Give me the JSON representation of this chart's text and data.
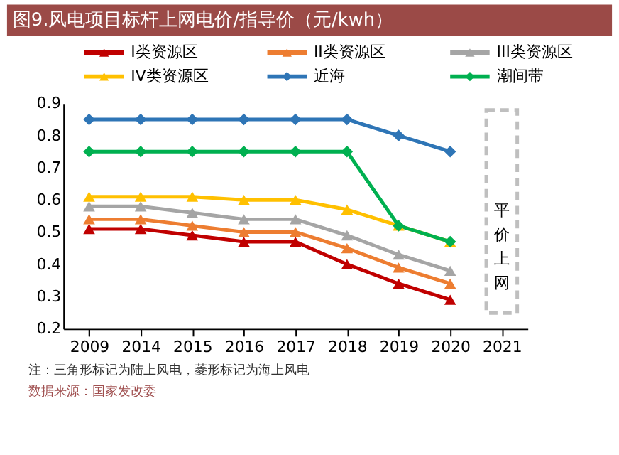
{
  "chart_data": {
    "type": "line",
    "title": "图9.风电项目标杆上网电价/指导价（元/kwh）",
    "categories": [
      "2009",
      "2014",
      "2015",
      "2016",
      "2017",
      "2018",
      "2019",
      "2020",
      "2021"
    ],
    "series": [
      {
        "name": "I类资源区",
        "color": "#c00000",
        "marker": "triangle",
        "values": [
          0.51,
          0.51,
          0.49,
          0.47,
          0.47,
          0.4,
          0.34,
          0.29,
          null
        ]
      },
      {
        "name": "II类资源区",
        "color": "#ed7d31",
        "marker": "triangle",
        "values": [
          0.54,
          0.54,
          0.52,
          0.5,
          0.5,
          0.45,
          0.39,
          0.34,
          null
        ]
      },
      {
        "name": "III类资源区",
        "color": "#a5a5a5",
        "marker": "triangle",
        "values": [
          0.58,
          0.58,
          0.56,
          0.54,
          0.54,
          0.49,
          0.43,
          0.38,
          null
        ]
      },
      {
        "name": "IV类资源区",
        "color": "#ffc000",
        "marker": "triangle",
        "values": [
          0.61,
          0.61,
          0.61,
          0.6,
          0.6,
          0.57,
          0.52,
          0.47,
          null
        ]
      },
      {
        "name": "近海",
        "color": "#2e75b6",
        "marker": "diamond",
        "values": [
          0.85,
          0.85,
          0.85,
          0.85,
          0.85,
          0.85,
          0.8,
          0.75,
          null
        ]
      },
      {
        "name": "潮间带",
        "color": "#00b050",
        "marker": "diamond",
        "values": [
          0.75,
          0.75,
          0.75,
          0.75,
          0.75,
          0.75,
          0.52,
          0.47,
          null
        ]
      }
    ],
    "ylim": [
      0.2,
      0.9
    ],
    "yticks": [
      {
        "value": 0.2,
        "label": "0.2"
      },
      {
        "value": 0.3,
        "label": "0.3"
      },
      {
        "value": 0.4,
        "label": "0.4"
      },
      {
        "value": 0.5,
        "label": "0.5"
      },
      {
        "value": 0.6,
        "label": "0.6"
      },
      {
        "value": 0.7,
        "label": "0.7"
      },
      {
        "value": 0.8,
        "label": "0.8"
      },
      {
        "value": 0.9,
        "label": "0.9"
      }
    ],
    "grid": false,
    "legend": "top",
    "line_style": "solid",
    "annotations": [
      "平价上网",
      "注：三角形标记为陆上风电，菱形标记为海上风电",
      "数据来源：国家发改委"
    ]
  }
}
